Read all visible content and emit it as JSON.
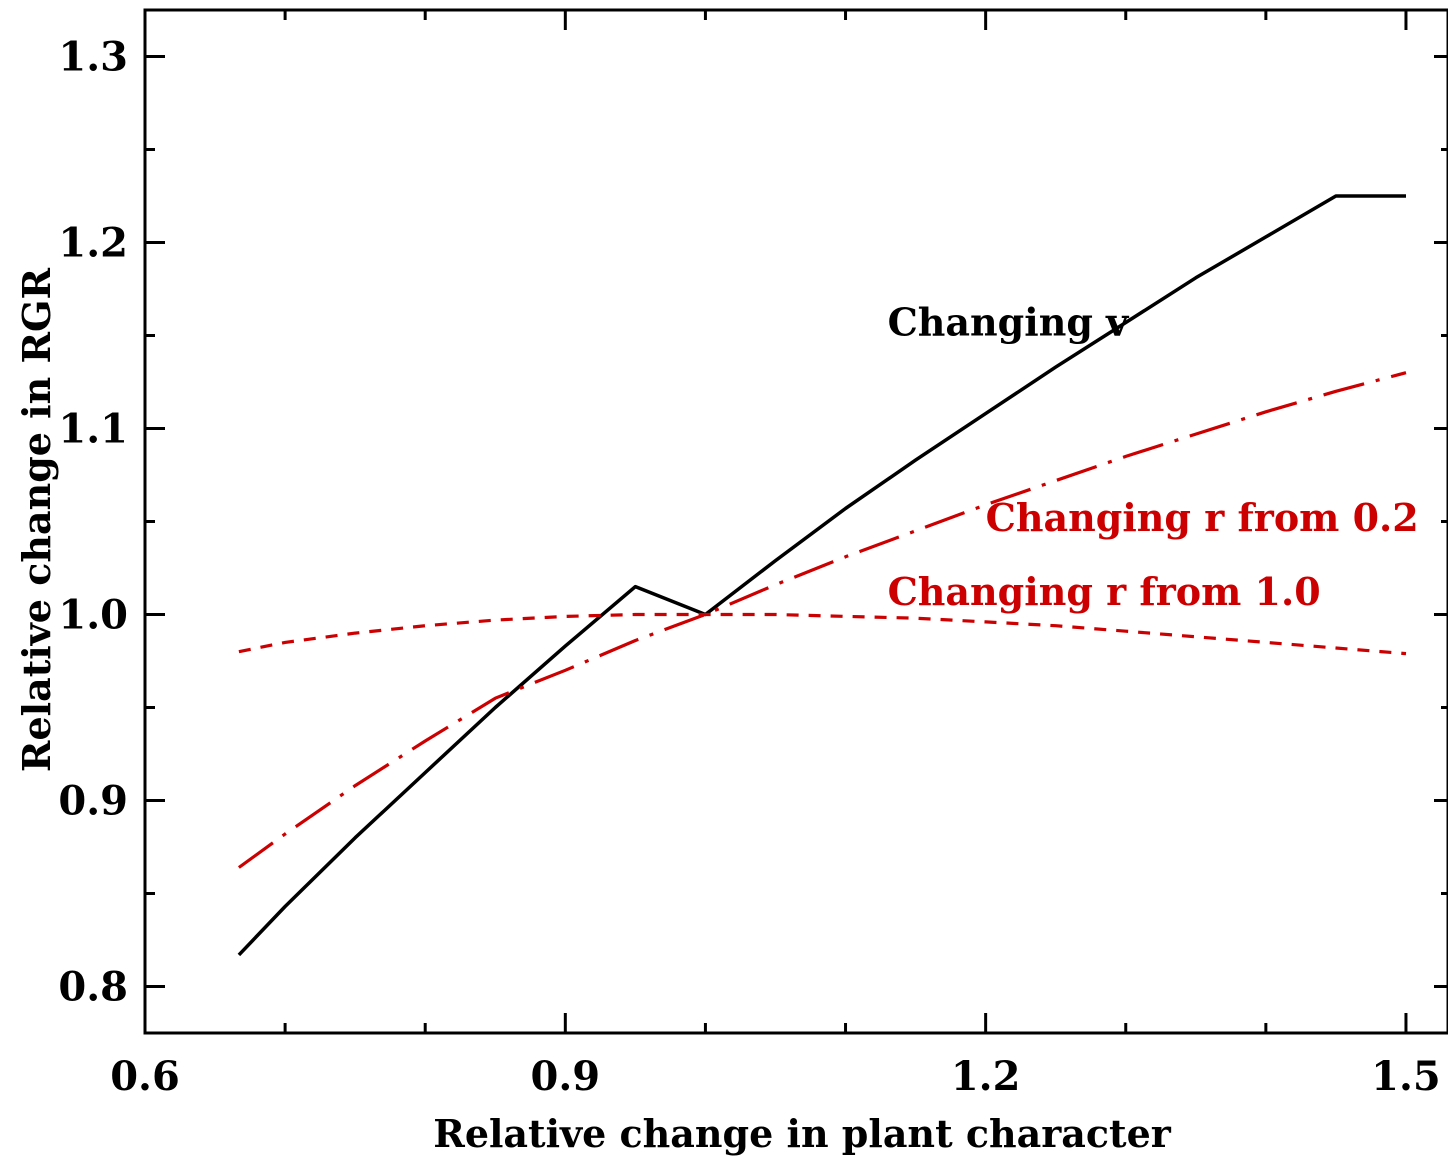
{
  "chart_data": {
    "type": "line",
    "title": "",
    "xlabel": "Relative change in plant character",
    "ylabel": "Relative change in RGR",
    "xlim": [
      0.6,
      1.53
    ],
    "ylim": [
      0.775,
      1.325
    ],
    "x_ticks": [
      {
        "value": 0.6,
        "label": "0.6"
      },
      {
        "value": 0.9,
        "label": "0.9"
      },
      {
        "value": 1.2,
        "label": "1.2"
      },
      {
        "value": 1.5,
        "label": "1.5"
      }
    ],
    "y_ticks": [
      {
        "value": 0.8,
        "label": "0.8"
      },
      {
        "value": 0.9,
        "label": "0.9"
      },
      {
        "value": 1.0,
        "label": "1.0"
      },
      {
        "value": 1.1,
        "label": "1.1"
      },
      {
        "value": 1.2,
        "label": "1.2"
      },
      {
        "value": 1.3,
        "label": "1.3"
      }
    ],
    "grid": false,
    "series": [
      {
        "name": "Changing v",
        "color": "#000000",
        "dash": "solid",
        "x": [
          0.667,
          0.7,
          0.75,
          0.8,
          0.85,
          0.9,
          0.95,
          1.0,
          1.05,
          1.1,
          1.15,
          1.2,
          1.25,
          1.3,
          1.35,
          1.4,
          1.45,
          1.5
        ],
        "y": [
          0.817,
          0.843,
          0.88,
          0.915,
          0.95,
          0.983,
          1.015,
          1.0,
          1.029,
          1.057,
          1.083,
          1.108,
          1.133,
          1.157,
          1.181,
          1.203,
          1.225,
          1.225
        ]
      },
      {
        "name": "Changing r from 0.2",
        "color": "#cc0000",
        "dash": "long-dash-dot",
        "x": [
          0.667,
          0.7,
          0.75,
          0.8,
          0.85,
          0.9,
          0.95,
          1.0,
          1.05,
          1.1,
          1.15,
          1.2,
          1.25,
          1.3,
          1.35,
          1.4,
          1.45,
          1.5
        ],
        "y": [
          0.864,
          0.882,
          0.908,
          0.932,
          0.955,
          0.97,
          0.986,
          1.0,
          1.016,
          1.031,
          1.045,
          1.059,
          1.072,
          1.085,
          1.097,
          1.109,
          1.12,
          1.13
        ]
      },
      {
        "name": "Changing r from 1.0",
        "color": "#cc0000",
        "dash": "short-dash",
        "x": [
          0.667,
          0.7,
          0.75,
          0.8,
          0.85,
          0.9,
          0.95,
          1.0,
          1.05,
          1.1,
          1.15,
          1.2,
          1.25,
          1.3,
          1.35,
          1.4,
          1.45,
          1.5
        ],
        "y": [
          0.98,
          0.985,
          0.99,
          0.994,
          0.997,
          0.999,
          1.0,
          1.0,
          1.0,
          0.999,
          0.998,
          0.996,
          0.994,
          0.991,
          0.988,
          0.985,
          0.982,
          0.979
        ]
      }
    ],
    "annotations": [
      {
        "text": "Changing v",
        "color": "#000000",
        "x": 1.13,
        "y": 1.15
      },
      {
        "text": "Changing r from 0.2",
        "color": "#cc0000",
        "x": 1.2,
        "y": 1.045
      },
      {
        "text": "Changing r from 1.0",
        "color": "#cc0000",
        "x": 1.13,
        "y": 1.005
      }
    ]
  }
}
